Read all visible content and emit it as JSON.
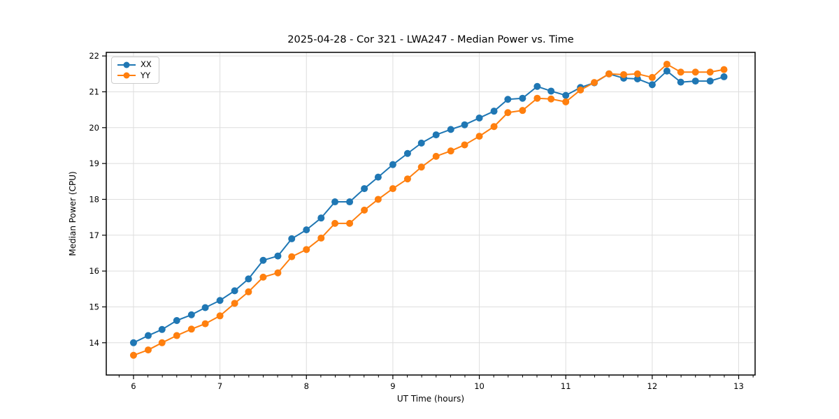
{
  "chart_data": {
    "type": "line",
    "title": "2025-04-28 - Cor 321 - LWA247 - Median Power vs. Time",
    "xlabel": "UT Time (hours)",
    "ylabel": "Median Power (CPU)",
    "xlim": [
      5.685,
      13.19
    ],
    "ylim": [
      13.1,
      22.1
    ],
    "xticks": [
      6,
      7,
      8,
      9,
      10,
      11,
      12,
      13
    ],
    "yticks": [
      14,
      15,
      16,
      17,
      18,
      19,
      20,
      21,
      22
    ],
    "x_minor_step_hours": 0.16667,
    "grid": true,
    "grid_color": "#dedede",
    "legend_position": "upper-left",
    "x": [
      6.0,
      6.17,
      6.33,
      6.5,
      6.67,
      6.83,
      7.0,
      7.17,
      7.33,
      7.5,
      7.67,
      7.83,
      8.0,
      8.17,
      8.33,
      8.5,
      8.67,
      8.83,
      9.0,
      9.17,
      9.33,
      9.5,
      9.67,
      9.83,
      10.0,
      10.17,
      10.33,
      10.5,
      10.67,
      10.83,
      11.0,
      11.17,
      11.33,
      11.5,
      11.67,
      11.83,
      12.0,
      12.17,
      12.33,
      12.5,
      12.67,
      12.83
    ],
    "series": [
      {
        "name": "XX",
        "color": "#1f77b4",
        "marker": "circle",
        "values": [
          14.0,
          14.2,
          14.37,
          14.62,
          14.78,
          14.98,
          15.18,
          15.45,
          15.78,
          16.3,
          16.42,
          16.9,
          17.15,
          17.48,
          17.93,
          17.93,
          18.3,
          18.62,
          18.97,
          19.28,
          19.57,
          19.8,
          19.95,
          20.08,
          20.27,
          20.46,
          20.79,
          20.82,
          21.15,
          21.02,
          20.9,
          21.12,
          21.25,
          21.5,
          21.38,
          21.36,
          21.2,
          21.58,
          21.27,
          21.3,
          21.3,
          21.42
        ]
      },
      {
        "name": "YY",
        "color": "#ff7f0e",
        "marker": "circle",
        "values": [
          13.65,
          13.8,
          14.0,
          14.2,
          14.38,
          14.53,
          14.75,
          15.1,
          15.42,
          15.83,
          15.95,
          16.4,
          16.6,
          16.92,
          17.33,
          17.33,
          17.7,
          18.0,
          18.3,
          18.57,
          18.9,
          19.2,
          19.35,
          19.52,
          19.76,
          20.03,
          20.42,
          20.48,
          20.82,
          20.8,
          20.72,
          21.05,
          21.26,
          21.5,
          21.48,
          21.5,
          21.4,
          21.77,
          21.55,
          21.55,
          21.55,
          21.62
        ]
      }
    ]
  }
}
